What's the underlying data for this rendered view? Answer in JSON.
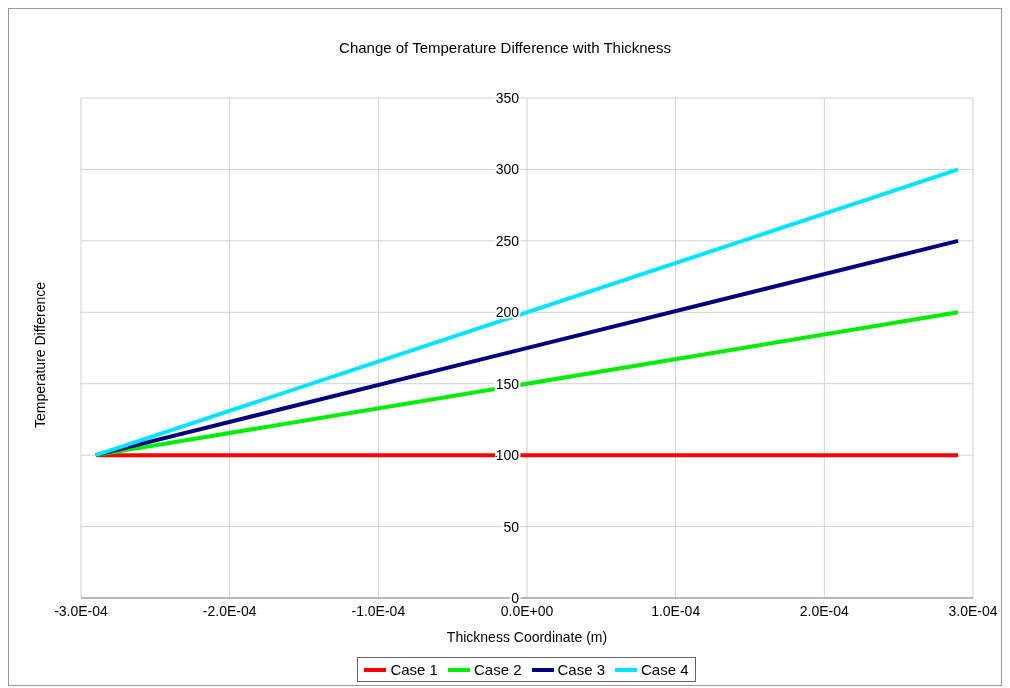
{
  "chart_data": {
    "type": "line",
    "title": "Change of Temperature Difference with Thickness",
    "xlabel": "Thickness Coordinate (m)",
    "ylabel": "Temperature Difference",
    "x": [
      -0.00029,
      0.00029
    ],
    "series": [
      {
        "name": "Case 1",
        "color": "#ff0000",
        "values": [
          100,
          100
        ]
      },
      {
        "name": "Case 2",
        "color": "#00ee00",
        "values": [
          100,
          200
        ]
      },
      {
        "name": "Case 3",
        "color": "#000080",
        "values": [
          100,
          250
        ]
      },
      {
        "name": "Case 4",
        "color": "#00e5ff",
        "values": [
          100,
          300
        ]
      }
    ],
    "xlim": [
      -0.0003,
      0.0003
    ],
    "xticks": [
      {
        "value": -0.0003,
        "label": "-3.0E-04"
      },
      {
        "value": -0.0002,
        "label": "-2.0E-04"
      },
      {
        "value": -0.0001,
        "label": "-1.0E-04"
      },
      {
        "value": 0,
        "label": "0.0E+00"
      },
      {
        "value": 0.0001,
        "label": "1.0E-04"
      },
      {
        "value": 0.0002,
        "label": "2.0E-04"
      },
      {
        "value": 0.0003,
        "label": "3.0E-04"
      }
    ],
    "ylim": [
      0,
      350
    ],
    "yticks": [
      0,
      50,
      100,
      150,
      200,
      250,
      300,
      350
    ],
    "grid": true,
    "legend": "bottom",
    "marker": "none",
    "line_style": "solid"
  }
}
